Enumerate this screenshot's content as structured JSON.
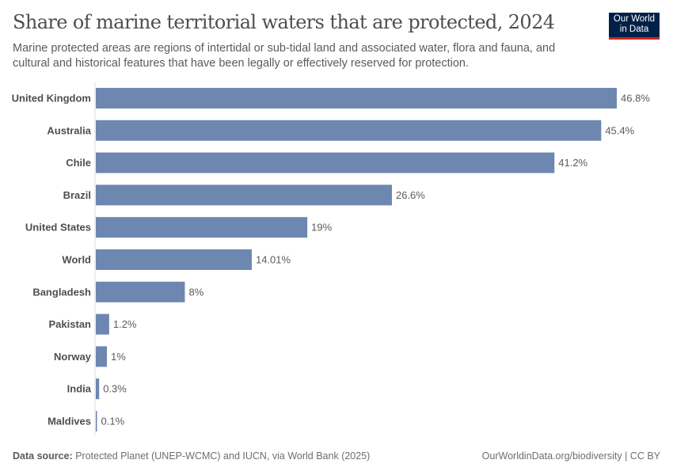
{
  "header": {
    "title": "Share of marine territorial waters that are protected, 2024",
    "subtitle": "Marine protected areas are regions of intertidal or sub-tidal land and associated water, flora and fauna, and cultural and historical features that have been legally or effectively reserved for protection.",
    "logo_line1": "Our World",
    "logo_line2": "in Data"
  },
  "footer": {
    "source_label": "Data source:",
    "source_text": " Protected Planet (UNEP-WCMC) and IUCN, via World Bank (2025)",
    "credit": "OurWorldinData.org/biodiversity | CC BY"
  },
  "colors": {
    "bar": "#6d87b0",
    "label": "#4e4e4e",
    "value": "#5b5b5b",
    "axis": "#dcdcdc",
    "logo_bg": "#002147",
    "logo_accent": "#ce261e"
  },
  "chart_data": {
    "type": "bar",
    "orientation": "horizontal",
    "title": "Share of marine territorial waters that are protected, 2024",
    "xlabel": "",
    "ylabel": "",
    "xlim": [
      0,
      46.8
    ],
    "categories": [
      "United Kingdom",
      "Australia",
      "Chile",
      "Brazil",
      "United States",
      "World",
      "Bangladesh",
      "Pakistan",
      "Norway",
      "India",
      "Maldives"
    ],
    "values": [
      46.8,
      45.4,
      41.2,
      26.6,
      19,
      14.01,
      8,
      1.2,
      1,
      0.3,
      0.1
    ],
    "value_labels": [
      "46.8%",
      "45.4%",
      "41.2%",
      "26.6%",
      "19%",
      "14.01%",
      "8%",
      "1.2%",
      "1%",
      "0.3%",
      "0.1%"
    ],
    "grid": false,
    "legend": "none"
  }
}
